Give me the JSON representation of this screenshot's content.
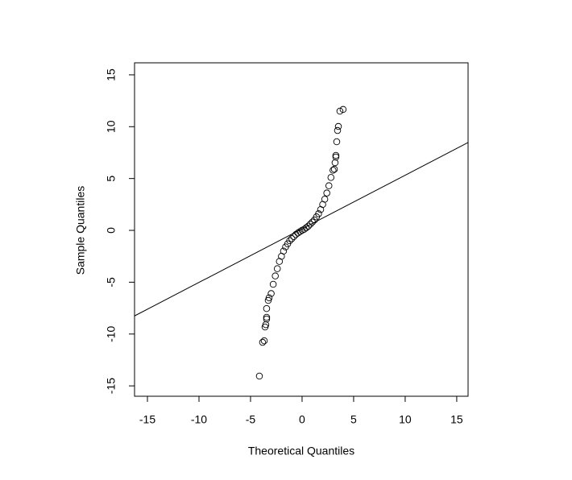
{
  "chart_data": {
    "type": "scatter",
    "x_label": "Theoretical Quantiles",
    "y_label": "Sample Quantiles",
    "x": [
      -4.14,
      -3.83,
      -3.67,
      -3.59,
      -3.52,
      -3.44,
      -3.44,
      -3.44,
      -3.28,
      -3.2,
      -3.0,
      -2.8,
      -2.6,
      -2.4,
      -2.2,
      -2.0,
      -1.8,
      -1.6,
      -1.4,
      -1.2,
      -1.0,
      -0.8,
      -0.6,
      -0.4,
      -0.2,
      0,
      0.2,
      0.4,
      0.6,
      0.8,
      1.0,
      1.2,
      1.4,
      1.6,
      1.8,
      2.0,
      2.2,
      2.4,
      2.6,
      2.8,
      3.0,
      3.13,
      3.2,
      3.28,
      3.28,
      3.36,
      3.44,
      3.52,
      3.67,
      3.98
    ],
    "y": [
      -14.06,
      -10.8,
      -10.65,
      -9.32,
      -9.1,
      -8.55,
      -8.39,
      -7.54,
      -6.76,
      -6.5,
      -6.1,
      -5.2,
      -4.4,
      -3.7,
      -3.0,
      -2.5,
      -2.0,
      -1.6,
      -1.3,
      -1.0,
      -0.8,
      -0.6,
      -0.4,
      -0.25,
      -0.12,
      0,
      0.1,
      0.25,
      0.4,
      0.6,
      0.8,
      1.0,
      1.3,
      1.6,
      2.0,
      2.5,
      3.0,
      3.6,
      4.3,
      5.1,
      5.8,
      5.9,
      6.53,
      7.07,
      7.23,
      8.55,
      9.63,
      10.02,
      11.5,
      11.66
    ],
    "color": "#000000",
    "reference_line": {
      "intercept": 0.15,
      "slope": 0.517
    },
    "xlim": [
      -16.25,
      16.1
    ],
    "ylim": [
      -16.0,
      16.16
    ],
    "xticks": [
      -15,
      -10,
      -5,
      0,
      5,
      10,
      15
    ],
    "yticks": [
      -15,
      -10,
      -5,
      0,
      5,
      10,
      15
    ]
  }
}
